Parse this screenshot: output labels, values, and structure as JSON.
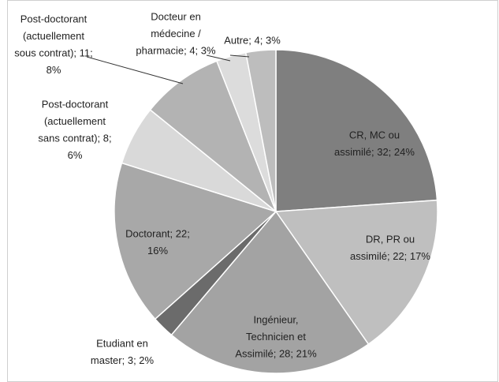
{
  "chart_data": {
    "type": "pie",
    "values": [
      32,
      22,
      28,
      3,
      22,
      8,
      11,
      4,
      4
    ],
    "value_labels": [
      [
        "CR, MC ou",
        "assimilé; 32; 24%"
      ],
      [
        "DR, PR ou",
        "assimilé; 22; 17%"
      ],
      [
        "Ingénieur,",
        "Technicien et",
        "Assimilé; 28; 21%"
      ],
      [
        "Etudiant en",
        "master; 3; 2%"
      ],
      [
        "Doctorant; 22;",
        "16%"
      ],
      [
        "Post-doctorant",
        "(actuellement",
        "sans contrat); 8;",
        "6%"
      ],
      [
        "Post-doctorant",
        "(actuellement",
        "sous contrat); 11;",
        "8%"
      ],
      [
        "Docteur en",
        "médecine /",
        "pharmacie; 4; 3%"
      ],
      [
        "Autre; 4; 3%"
      ]
    ],
    "colors": [
      "#7f7f7f",
      "#bfbfbf",
      "#a3a3a3",
      "#6b6b6b",
      "#a8a8a8",
      "#d9d9d9",
      "#b3b3b3",
      "#dcdcdc",
      "#bdbdbd"
    ]
  }
}
